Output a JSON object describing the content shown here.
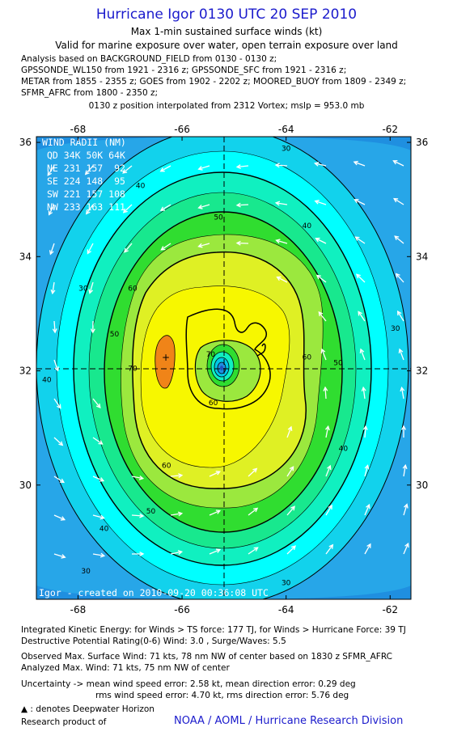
{
  "header": {
    "title": "Hurricane Igor 0130 UTC 20 SEP 2010",
    "subtitle": "Max 1-min sustained surface winds (kt)",
    "validity": "Valid for marine exposure over water, open terrain exposure over land",
    "analysis_lines": [
      "Analysis based on BACKGROUND_FIELD from 0130 - 0130 z;",
      "GPSSONDE_WL150 from 1921 - 2316 z; GPSSONDE_SFC from 1921 - 2316 z;",
      "METAR from 1855 - 2355 z; GOES from 1902 - 2202 z; MOORED_BUOY from 1809 - 2349 z;",
      "SFMR_AFRC from 1800 - 2350 z;"
    ],
    "position_note": "0130 z position interpolated from 2312 Vortex; mslp = 953.0 mb"
  },
  "wind_radii": {
    "title": "WIND RADII (NM)",
    "rows": [
      "QD 34K 50K 64K",
      "NE 231 157  92",
      "SE 224 148  95",
      "SW 221 157 108",
      "NW 233 163 111"
    ]
  },
  "credit": "Igor - created on 2010-09-20 00:36:08 UTC",
  "chart_data": {
    "type": "heatmap",
    "variable": "Max 1-min sustained surface winds (kt)",
    "x_axis": {
      "unit": "longitude",
      "ticks": [
        -68,
        -66,
        -64,
        -62
      ],
      "range": [
        -68.8,
        -61.6
      ]
    },
    "y_axis": {
      "unit": "latitude",
      "ticks": [
        30,
        32,
        34,
        36
      ],
      "range": [
        28.0,
        36.1
      ]
    },
    "center": {
      "lon": -65.65,
      "lat": 32.15
    },
    "contour_labels": [
      {
        "text": "30",
        "lon": -64.0,
        "lat": 35.85
      },
      {
        "text": "40",
        "lon": -66.8,
        "lat": 35.2
      },
      {
        "text": "40",
        "lon": -63.6,
        "lat": 34.5
      },
      {
        "text": "50",
        "lon": -65.3,
        "lat": 34.65
      },
      {
        "text": "30",
        "lon": -67.9,
        "lat": 33.4
      },
      {
        "text": "40",
        "lon": -68.6,
        "lat": 31.8
      },
      {
        "text": "50",
        "lon": -67.3,
        "lat": 32.6
      },
      {
        "text": "60",
        "lon": -66.95,
        "lat": 33.4
      },
      {
        "text": "70",
        "lon": -66.95,
        "lat": 32.0
      },
      {
        "text": "60",
        "lon": -63.6,
        "lat": 32.2
      },
      {
        "text": "50",
        "lon": -63.0,
        "lat": 32.1
      },
      {
        "text": "30",
        "lon": -61.9,
        "lat": 32.7
      },
      {
        "text": "70",
        "lon": -65.45,
        "lat": 32.25
      },
      {
        "text": "60",
        "lon": -65.4,
        "lat": 31.4
      },
      {
        "text": "40",
        "lon": -62.9,
        "lat": 30.6
      },
      {
        "text": "60",
        "lon": -66.3,
        "lat": 30.3
      },
      {
        "text": "50",
        "lon": -66.6,
        "lat": 29.5
      },
      {
        "text": "40",
        "lon": -67.5,
        "lat": 29.2
      },
      {
        "text": "30",
        "lon": -67.85,
        "lat": 28.45
      },
      {
        "text": "30",
        "lon": -64.0,
        "lat": 28.25
      }
    ],
    "levels_kt": [
      {
        "kt": 10,
        "color": "#1f8fe0"
      },
      {
        "kt": 20,
        "color": "#27a6e8"
      },
      {
        "kt": 30,
        "color": "#12d2ec"
      },
      {
        "kt": 35,
        "color": "#00ffff"
      },
      {
        "kt": 40,
        "color": "#10f0c0"
      },
      {
        "kt": 45,
        "color": "#18e88e"
      },
      {
        "kt": 50,
        "color": "#30dd30"
      },
      {
        "kt": 55,
        "color": "#9be83e"
      },
      {
        "kt": 60,
        "color": "#dff024"
      },
      {
        "kt": 65,
        "color": "#f7f700"
      },
      {
        "kt": 70,
        "color": "#f08418"
      }
    ]
  },
  "stats": {
    "ike": "Integrated Kinetic Energy:  for Winds > TS force: 177 TJ,  for Winds > Hurricane Force: 39 TJ",
    "dpr": "Destructive Potential Rating(0-6)   Wind: 3.0 , Surge/Waves: 5.5",
    "observed": "Observed Max. Surface Wind: 71 kts, 78 nm NW of center based on 1830 z SFMR_AFRC",
    "analyzed": "Analyzed Max. Wind: 71 kts, 75 nm NW of center",
    "uncert1": "Uncertainty -> mean wind speed error: 2.58 kt,   mean direction error: 0.29 deg",
    "uncert2": "rms wind speed error: 4.70 kt,   rms direction error: 5.76 deg",
    "legend_note": ": denotes Deepwater Horizon",
    "product": "Research product of",
    "org": "NOAA / AOML / Hurricane Research Division"
  }
}
